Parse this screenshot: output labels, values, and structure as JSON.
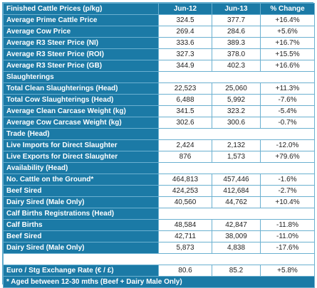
{
  "table": {
    "header": [
      "Finished Cattle Prices (p/kg)",
      "Jun-12",
      "Jun-13",
      "% Change"
    ],
    "rows": [
      [
        "Average Prime Cattle Price",
        "324.5",
        "377.7",
        "+16.4%"
      ],
      [
        "Average Cow Price",
        "269.4",
        "284.6",
        "+5.6%"
      ],
      [
        "Average R3 Steer Price (NI)",
        "333.6",
        "389.3",
        "+16.7%"
      ],
      [
        "Average R3 Steer Price (ROI)",
        "327.3",
        "378.0",
        "+15.5%"
      ],
      [
        "Average R3 Steer Price (GB)",
        "344.9",
        "402.3",
        "+16.6%"
      ],
      [
        "Slaughterings"
      ],
      [
        "Total Clean Slaughterings (Head)",
        "22,523",
        "25,060",
        "+11.3%"
      ],
      [
        "Total Cow Slaughterings (Head)",
        "6,488",
        "5,992",
        "-7.6%"
      ],
      [
        "Average Clean Carcase Weight (kg)",
        "341.5",
        "323.2",
        "-5.4%"
      ],
      [
        "Average Cow Carcase Weight (kg)",
        "302.6",
        "300.6",
        "-0.7%"
      ],
      [
        "Trade (Head)"
      ],
      [
        "Live Imports for Direct Slaughter",
        "2,424",
        "2,132",
        "-12.0%"
      ],
      [
        "Live Exports for Direct Slaughter",
        "876",
        "1,573",
        "+79.6%"
      ],
      [
        "Availability (Head)"
      ],
      [
        "No. Cattle on the Ground*",
        "464,813",
        "457,446",
        "-1.6%"
      ],
      [
        "Beef Sired",
        "424,253",
        "412,684",
        "-2.7%"
      ],
      [
        "Dairy Sired (Male Only)",
        "40,560",
        "44,762",
        "+10.4%"
      ],
      [
        "Calf Births Registrations (Head)"
      ],
      [
        "Calf Births",
        "48,584",
        "42,847",
        "-11.8%"
      ],
      [
        "Beef Sired",
        "42,711",
        "38,009",
        "-11.0%"
      ],
      [
        "Dairy Sired (Male Only)",
        "5,873",
        "4,838",
        "-17.6%"
      ],
      [],
      [
        "Euro / Stg Exchange Rate (€ / £)",
        "80.6",
        "85.2",
        "+5.8%"
      ]
    ],
    "footnote": "* Aged between 12-30 mths (Beef + Dairy Male Only)"
  }
}
